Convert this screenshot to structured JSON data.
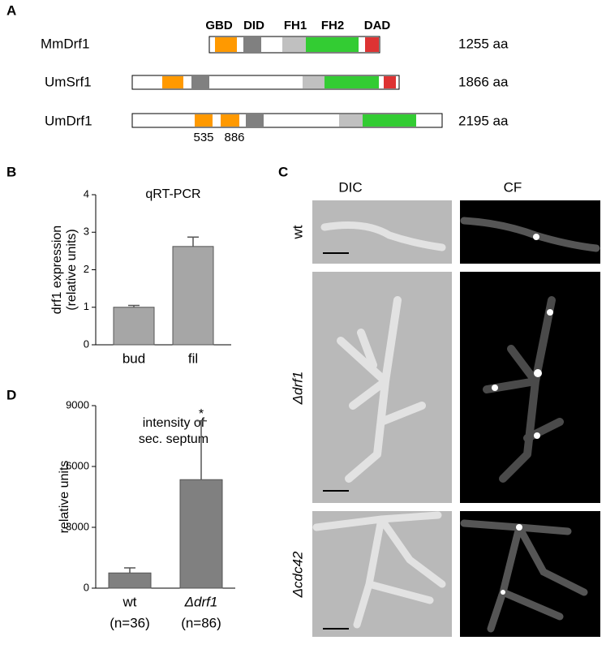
{
  "panel_labels": [
    "A",
    "B",
    "C",
    "D"
  ],
  "panel_a": {
    "domain_names": [
      "GBD",
      "DID",
      "FH1",
      "FH2",
      "DAD"
    ],
    "proteins": [
      {
        "name": "MmDrf1",
        "length": "1255 aa"
      },
      {
        "name": "UmSrf1",
        "length": "1866 aa"
      },
      {
        "name": "UmDrf1",
        "length": "2195 aa"
      }
    ],
    "positions": [
      "535",
      "886"
    ]
  },
  "panel_c": {
    "columns": [
      "DIC",
      "CF"
    ],
    "rows": [
      "wt",
      "Δdrf1",
      "Δcdc42"
    ]
  },
  "chart_data": [
    {
      "type": "bar",
      "title": "qRT-PCR",
      "y_label": [
        "drf1 expression",
        "(relative units)"
      ],
      "categories": [
        "bud",
        "fil"
      ],
      "values": [
        1.0,
        2.62
      ],
      "errors": [
        0.05,
        0.25
      ],
      "color": "#a6a6a6",
      "ylim": [
        0,
        4
      ],
      "yticks": [
        0,
        1,
        2,
        3,
        4
      ]
    },
    {
      "type": "bar",
      "annotation": [
        "intensity of",
        "sec. septum"
      ],
      "y_label": [
        "relative units"
      ],
      "categories": [
        "wt",
        "Δdrf1"
      ],
      "sample_sizes": [
        "(n=36)",
        "(n=86)"
      ],
      "values": [
        750,
        5350
      ],
      "errors": [
        250,
        2900
      ],
      "significance": [
        "",
        "*"
      ],
      "color": "#808080",
      "ylim": [
        0,
        9000
      ],
      "yticks": [
        0,
        3000,
        6000,
        9000
      ]
    }
  ]
}
